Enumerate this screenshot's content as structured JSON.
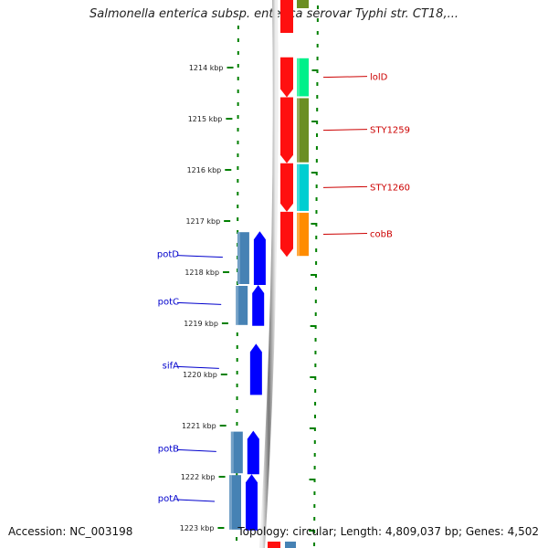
{
  "title": "Salmonella enterica subsp. enterica serovar Typhi str. CT18,...",
  "footer": {
    "accession": "Accession: NC_003198",
    "topology": "Topology: circular; Length: 4,809,037 bp; Genes: 4,502"
  },
  "axis": {
    "unit": "kbp",
    "range": [
      1213,
      1223
    ],
    "ticks": [
      {
        "kbp": 1214,
        "label": "1214 kbp"
      },
      {
        "kbp": 1215,
        "label": "1215 kbp"
      },
      {
        "kbp": 1216,
        "label": "1216 kbp"
      },
      {
        "kbp": 1217,
        "label": "1217 kbp"
      },
      {
        "kbp": 1218,
        "label": "1218 kbp"
      },
      {
        "kbp": 1219,
        "label": "1219 kbp"
      },
      {
        "kbp": 1220,
        "label": "1220 kbp"
      },
      {
        "kbp": 1221,
        "label": "1221 kbp"
      },
      {
        "kbp": 1222,
        "label": "1222 kbp"
      },
      {
        "kbp": 1223,
        "label": "1223 kbp"
      }
    ]
  },
  "genes": [
    {
      "name": "lolD",
      "start": 1213.8,
      "end": 1214.58,
      "strand": "forward",
      "shade": "#00f08a",
      "arrow": "#ff1010"
    },
    {
      "name": "STY1259",
      "start": 1214.58,
      "end": 1215.87,
      "strand": "forward",
      "shade": "#6b8e23",
      "arrow": "#ff1010"
    },
    {
      "name": "STY1260",
      "start": 1215.87,
      "end": 1216.82,
      "strand": "forward",
      "shade": "#00ced1",
      "arrow": "#ff1010"
    },
    {
      "name": "cobB",
      "start": 1216.82,
      "end": 1217.7,
      "strand": "forward",
      "shade": "#ff8c00",
      "arrow": "#ff1010"
    },
    {
      "name": "potD",
      "start": 1217.2,
      "end": 1218.25,
      "strand": "reverse",
      "shade": "#4682b4",
      "arrow": "#0000ff"
    },
    {
      "name": "potC",
      "start": 1218.25,
      "end": 1219.05,
      "strand": "reverse",
      "shade": "#4682b4",
      "arrow": "#0000ff"
    },
    {
      "name": "sifA",
      "start": 1219.4,
      "end": 1220.4,
      "strand": "reverse",
      "shade": "",
      "arrow": "#0000ff"
    },
    {
      "name": "potB",
      "start": 1221.1,
      "end": 1221.95,
      "strand": "reverse",
      "shade": "#4682b4",
      "arrow": "#0000ff"
    },
    {
      "name": "potA",
      "start": 1221.95,
      "end": 1223.05,
      "strand": "reverse",
      "shade": "#4682b4",
      "arrow": "#0000ff"
    }
  ],
  "colors": {
    "forward_label": "#cc0000",
    "reverse_label": "#0000cc",
    "ruler_dots": "#008000",
    "backbone": "#777777"
  }
}
